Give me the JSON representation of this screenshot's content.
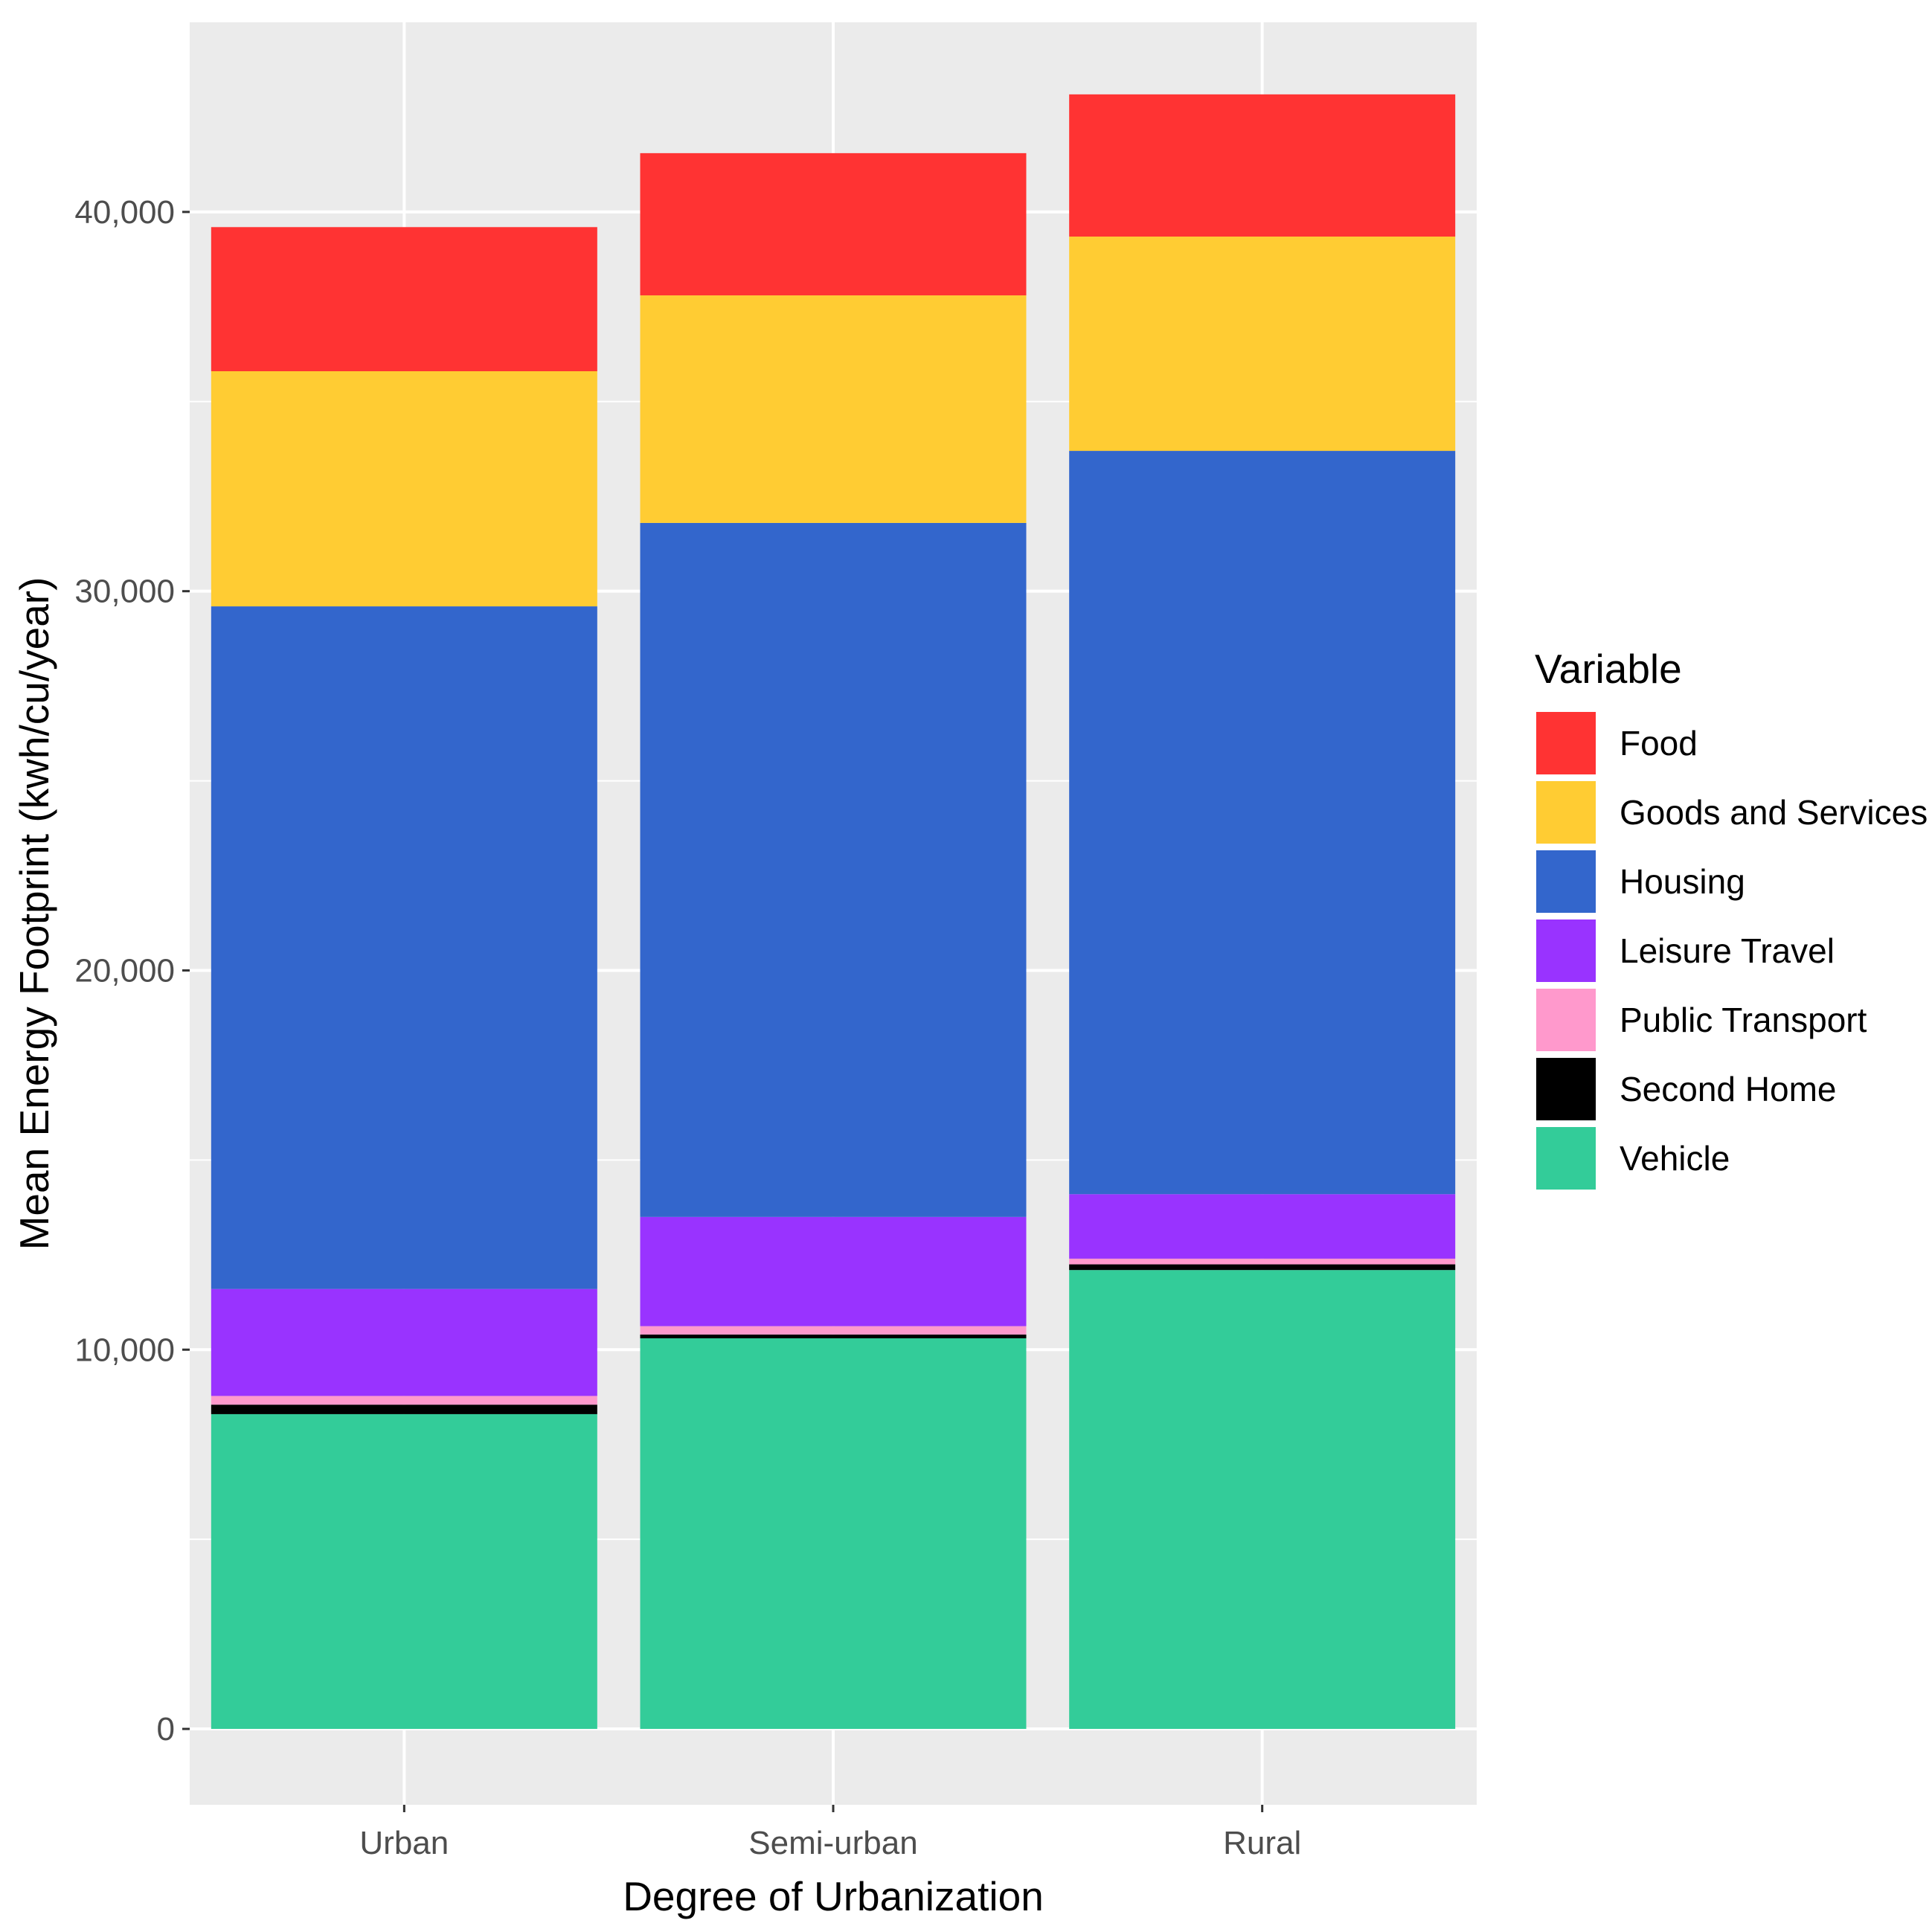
{
  "chart_data": {
    "type": "bar",
    "stacked": true,
    "title": "",
    "xlabel": "Degree of Urbanization",
    "ylabel": "Mean Energy Footprint (kwh/cu/year)",
    "ylim": [
      -2000,
      45000
    ],
    "yticks": [
      0,
      10000,
      20000,
      30000,
      40000
    ],
    "ytick_labels": [
      "0",
      "10,000",
      "20,000",
      "30,000",
      "40,000"
    ],
    "categories": [
      "Urban",
      "Semi-urban",
      "Rural"
    ],
    "grid": true,
    "legend_title": "Variable",
    "legend_position": "right",
    "series": [
      {
        "name": "Vehicle",
        "color": "#33CC99",
        "values": [
          8300,
          10300,
          12100
        ]
      },
      {
        "name": "Second Home",
        "color": "#000000",
        "values": [
          250,
          100,
          150
        ]
      },
      {
        "name": "Public Transport",
        "color": "#FF99CC",
        "values": [
          230,
          220,
          150
        ]
      },
      {
        "name": "Leisure Travel",
        "color": "#9933FF",
        "values": [
          2820,
          2880,
          1700
        ]
      },
      {
        "name": "Housing",
        "color": "#3366CC",
        "values": [
          18000,
          18300,
          19600
        ]
      },
      {
        "name": "Goods and Services",
        "color": "#FFCC33",
        "values": [
          6200,
          6000,
          5650
        ]
      },
      {
        "name": "Food",
        "color": "#FF3333",
        "values": [
          3800,
          3750,
          3750
        ]
      }
    ],
    "legend_order": [
      "Food",
      "Goods and Services",
      "Housing",
      "Leisure Travel",
      "Public Transport",
      "Second Home",
      "Vehicle"
    ]
  }
}
